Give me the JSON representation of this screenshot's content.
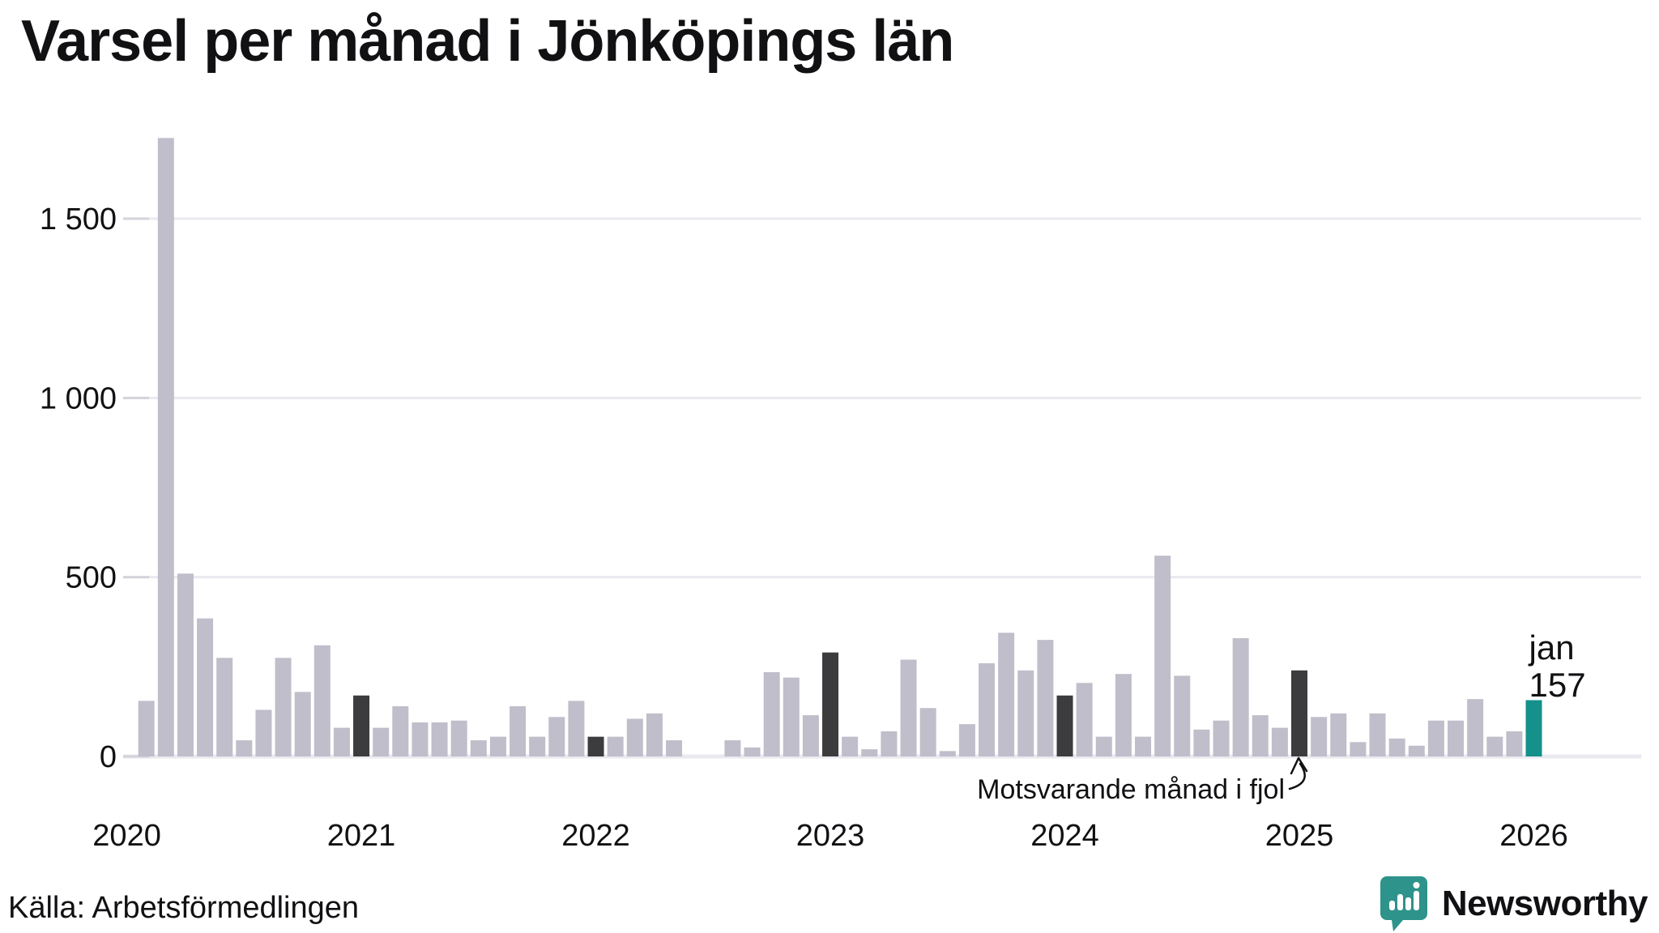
{
  "title": "Varsel per månad i Jönköpings län",
  "source": "Källa: Arbetsförmedlingen",
  "brand": {
    "name": "Newsworthy"
  },
  "colors": {
    "bar": "#bfbeca",
    "bar_last_year": "#3c3c3e",
    "bar_current": "#13918a",
    "grid": "#eae9ef",
    "tick": "#d4d3db",
    "baseline": "#edecf2",
    "text": "#111114",
    "brand_teal": "#2e938b"
  },
  "chart_data": {
    "type": "bar",
    "title": "Varsel per månad i Jönköpings län",
    "xlabel": "",
    "ylabel": "",
    "ylim": [
      0,
      1760
    ],
    "grid": "horizontal",
    "y_ticks": [
      {
        "value": 0,
        "label": "0"
      },
      {
        "value": 500,
        "label": "500"
      },
      {
        "value": 1000,
        "label": "1 000"
      },
      {
        "value": 1500,
        "label": "1 500"
      }
    ],
    "x_year_ticks": [
      {
        "label": "2020",
        "index": -1
      },
      {
        "label": "2021",
        "index": 11
      },
      {
        "label": "2022",
        "index": 23
      },
      {
        "label": "2023",
        "index": 35
      },
      {
        "label": "2024",
        "index": 47
      },
      {
        "label": "2025",
        "index": 59
      },
      {
        "label": "2026",
        "index": 71
      }
    ],
    "annotation": {
      "text": "Motsvarande månad i fjol",
      "target_index": 59
    },
    "current_label": {
      "line1": "jan",
      "line2": "157",
      "target_index": 71
    },
    "series": [
      {
        "label": "feb 2020",
        "value": 155
      },
      {
        "label": "mar 2020",
        "value": 1725
      },
      {
        "label": "apr 2020",
        "value": 510
      },
      {
        "label": "maj 2020",
        "value": 385
      },
      {
        "label": "jun 2020",
        "value": 275
      },
      {
        "label": "jul 2020",
        "value": 45
      },
      {
        "label": "aug 2020",
        "value": 130
      },
      {
        "label": "sep 2020",
        "value": 275
      },
      {
        "label": "okt 2020",
        "value": 180
      },
      {
        "label": "nov 2020",
        "value": 310
      },
      {
        "label": "dec 2020",
        "value": 80
      },
      {
        "label": "jan 2021",
        "value": 170,
        "highlight": "lastyear"
      },
      {
        "label": "feb 2021",
        "value": 80
      },
      {
        "label": "mar 2021",
        "value": 140
      },
      {
        "label": "apr 2021",
        "value": 95
      },
      {
        "label": "maj 2021",
        "value": 95
      },
      {
        "label": "jun 2021",
        "value": 100
      },
      {
        "label": "jul 2021",
        "value": 45
      },
      {
        "label": "aug 2021",
        "value": 55
      },
      {
        "label": "sep 2021",
        "value": 140
      },
      {
        "label": "okt 2021",
        "value": 55
      },
      {
        "label": "nov 2021",
        "value": 110
      },
      {
        "label": "dec 2021",
        "value": 155
      },
      {
        "label": "jan 2022",
        "value": 55,
        "highlight": "lastyear"
      },
      {
        "label": "feb 2022",
        "value": 55
      },
      {
        "label": "mar 2022",
        "value": 105
      },
      {
        "label": "apr 2022",
        "value": 120
      },
      {
        "label": "maj 2022",
        "value": 45
      },
      {
        "label": "jun 2022",
        "value": 0
      },
      {
        "label": "jul 2022",
        "value": 0
      },
      {
        "label": "aug 2022",
        "value": 45
      },
      {
        "label": "sep 2022",
        "value": 25
      },
      {
        "label": "okt 2022",
        "value": 235
      },
      {
        "label": "nov 2022",
        "value": 220
      },
      {
        "label": "dec 2022",
        "value": 115
      },
      {
        "label": "jan 2023",
        "value": 290,
        "highlight": "lastyear"
      },
      {
        "label": "feb 2023",
        "value": 55
      },
      {
        "label": "mar 2023",
        "value": 20
      },
      {
        "label": "apr 2023",
        "value": 70
      },
      {
        "label": "maj 2023",
        "value": 270
      },
      {
        "label": "jun 2023",
        "value": 135
      },
      {
        "label": "jul 2023",
        "value": 15
      },
      {
        "label": "aug 2023",
        "value": 90
      },
      {
        "label": "sep 2023",
        "value": 260
      },
      {
        "label": "okt 2023",
        "value": 345
      },
      {
        "label": "nov 2023",
        "value": 240
      },
      {
        "label": "dec 2023",
        "value": 325
      },
      {
        "label": "jan 2024",
        "value": 170,
        "highlight": "lastyear"
      },
      {
        "label": "feb 2024",
        "value": 205
      },
      {
        "label": "mar 2024",
        "value": 55
      },
      {
        "label": "apr 2024",
        "value": 230
      },
      {
        "label": "maj 2024",
        "value": 55
      },
      {
        "label": "jun 2024",
        "value": 560
      },
      {
        "label": "jul 2024",
        "value": 225
      },
      {
        "label": "aug 2024",
        "value": 75
      },
      {
        "label": "sep 2024",
        "value": 100
      },
      {
        "label": "okt 2024",
        "value": 330
      },
      {
        "label": "nov 2024",
        "value": 115
      },
      {
        "label": "dec 2024",
        "value": 80
      },
      {
        "label": "jan 2025",
        "value": 240,
        "highlight": "lastyear"
      },
      {
        "label": "feb 2025",
        "value": 110
      },
      {
        "label": "mar 2025",
        "value": 120
      },
      {
        "label": "apr 2025",
        "value": 40
      },
      {
        "label": "maj 2025",
        "value": 120
      },
      {
        "label": "jun 2025",
        "value": 50
      },
      {
        "label": "jul 2025",
        "value": 30
      },
      {
        "label": "aug 2025",
        "value": 100
      },
      {
        "label": "sep 2025",
        "value": 100
      },
      {
        "label": "okt 2025",
        "value": 160
      },
      {
        "label": "nov 2025",
        "value": 55
      },
      {
        "label": "dec 2025",
        "value": 70
      },
      {
        "label": "jan 2026",
        "value": 157,
        "highlight": "current"
      }
    ]
  }
}
